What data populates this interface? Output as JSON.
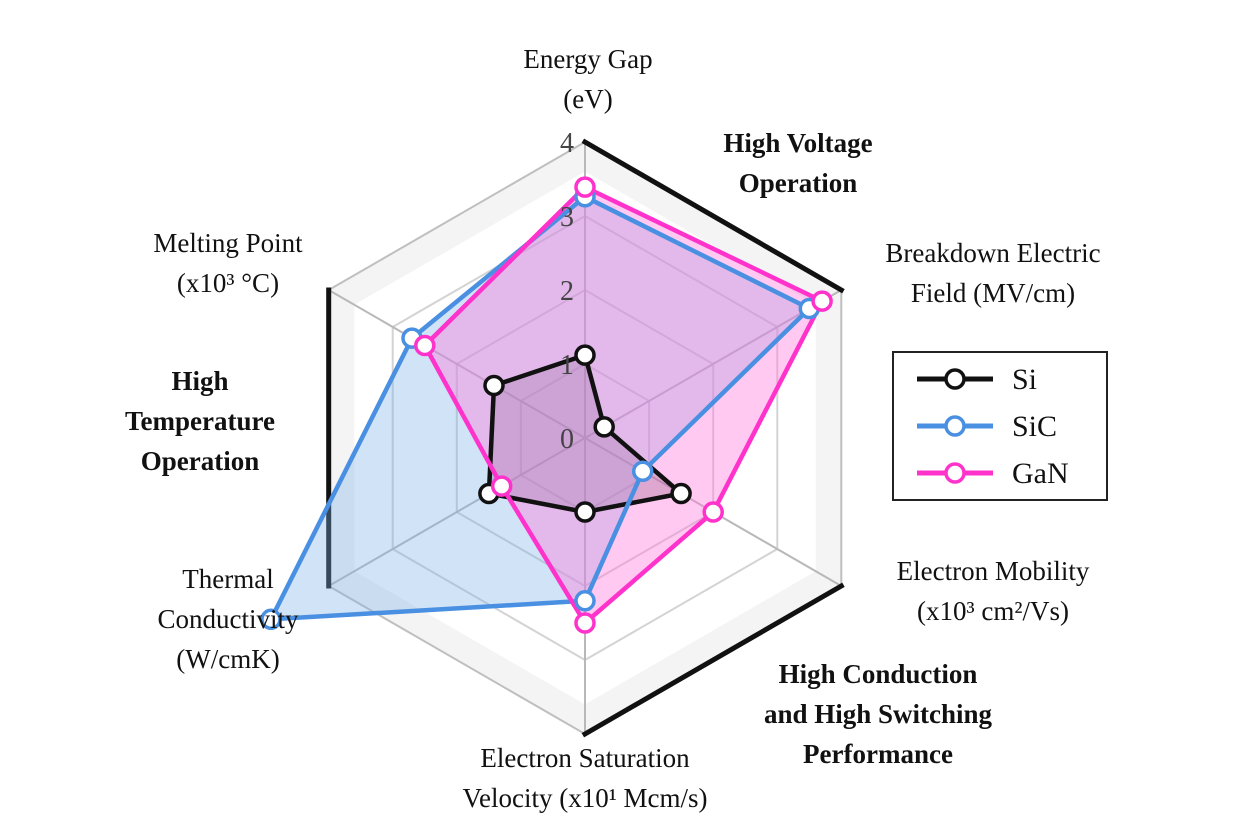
{
  "chart_data": {
    "type": "radar",
    "title": "",
    "rmax": 4,
    "ticks": [
      "0",
      "1",
      "2",
      "3",
      "4"
    ],
    "axes": [
      {
        "lines": [
          "Energy Gap",
          "(eV)"
        ]
      },
      {
        "lines": [
          "Breakdown Electric",
          "Field (MV/cm)"
        ]
      },
      {
        "lines": [
          "Electron Mobility",
          "(x10³ cm²/Vs)"
        ]
      },
      {
        "lines": [
          "Electron Saturation",
          "Velocity (x10¹ Mcm/s)"
        ]
      },
      {
        "lines": [
          "Thermal",
          "Conductivity",
          "(W/cmK)"
        ]
      },
      {
        "lines": [
          "Melting Point",
          "(x10³ °C)"
        ]
      }
    ],
    "series": [
      {
        "name": "Si",
        "color": "#111111",
        "fill": "#444444",
        "fill_opacity": 0.3,
        "values": [
          1.12,
          0.3,
          1.5,
          1.0,
          1.5,
          1.42
        ]
      },
      {
        "name": "SiC",
        "color": "#4a90e2",
        "fill": "#7aaee6",
        "fill_opacity": 0.35,
        "values": [
          3.26,
          3.5,
          0.9,
          2.2,
          4.9,
          2.7
        ]
      },
      {
        "name": "GaN",
        "color": "#ff33cc",
        "fill": "#ff77dd",
        "fill_opacity": 0.4,
        "values": [
          3.39,
          3.7,
          2.0,
          2.5,
          1.3,
          2.5
        ]
      }
    ],
    "groups": [
      {
        "lines": [
          "High Voltage",
          "Operation"
        ],
        "position": "top-right"
      },
      {
        "lines": [
          "High",
          "Temperature",
          "Operation"
        ],
        "position": "left"
      },
      {
        "lines": [
          "High Conduction",
          "and High Switching",
          "Performance"
        ],
        "position": "bottom-right"
      }
    ],
    "legend_position": "right"
  }
}
